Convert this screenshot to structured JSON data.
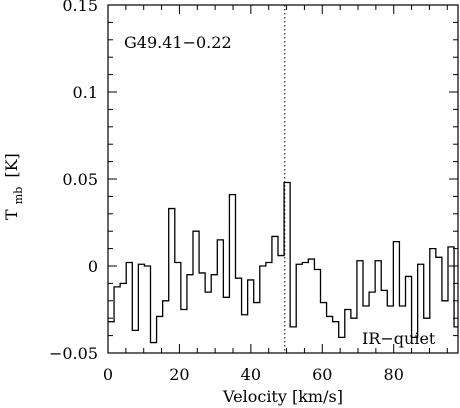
{
  "chart_data": {
    "type": "line",
    "step": true,
    "title": "",
    "xlabel": "Velocity [km/s]",
    "ylabel_main": "T",
    "ylabel_sub": "mb",
    "ylabel_unit": "[K]",
    "xlim": [
      0,
      98
    ],
    "ylim": [
      -0.05,
      0.15
    ],
    "xticks": [
      0,
      20,
      40,
      60,
      80
    ],
    "xtick_labels": [
      "0",
      "20",
      "40",
      "60",
      "80"
    ],
    "yticks": [
      -0.05,
      0,
      0.05,
      0.1,
      0.15
    ],
    "ytick_labels": [
      "−0.05",
      "0",
      "0.05",
      "0.1",
      "0.15"
    ],
    "reference_line_x": 49.5,
    "annotations": {
      "source": "G49.41−0.22",
      "classification": "IR−quiet"
    },
    "series": [
      {
        "bin_width": 1.7,
        "x": [
          0.85,
          2.55,
          4.25,
          5.95,
          7.65,
          9.35,
          11.05,
          12.75,
          14.45,
          16.15,
          17.85,
          19.55,
          21.25,
          22.95,
          24.65,
          26.35,
          28.05,
          29.75,
          31.45,
          33.15,
          34.85,
          36.55,
          38.25,
          39.95,
          41.65,
          43.35,
          45.05,
          46.75,
          48.45,
          50.15,
          51.85,
          53.55,
          55.25,
          56.95,
          58.65,
          60.35,
          62.05,
          63.75,
          65.45,
          67.15,
          68.85,
          70.55,
          72.25,
          73.95,
          75.65,
          77.35,
          79.05,
          80.75,
          82.45,
          84.15,
          85.85,
          87.55,
          89.25,
          90.95,
          92.65,
          94.35,
          96.05,
          97.75
        ],
        "values": [
          -0.032,
          -0.012,
          -0.01,
          0.002,
          -0.037,
          0.001,
          0.0,
          -0.044,
          -0.029,
          -0.02,
          0.033,
          0.002,
          -0.025,
          -0.005,
          0.02,
          -0.004,
          -0.015,
          -0.005,
          0.015,
          -0.018,
          0.041,
          -0.007,
          -0.028,
          -0.008,
          -0.021,
          0.0,
          0.002,
          0.017,
          0.006,
          0.048,
          -0.035,
          0.001,
          0.002,
          0.004,
          -0.002,
          -0.021,
          -0.029,
          -0.032,
          -0.041,
          -0.025,
          -0.03,
          0.003,
          -0.023,
          -0.015,
          0.003,
          -0.014,
          -0.023,
          0.014,
          -0.023,
          -0.006,
          -0.041,
          0.001,
          -0.03,
          0.01,
          0.005,
          -0.02,
          0.011,
          -0.035
        ]
      }
    ]
  }
}
